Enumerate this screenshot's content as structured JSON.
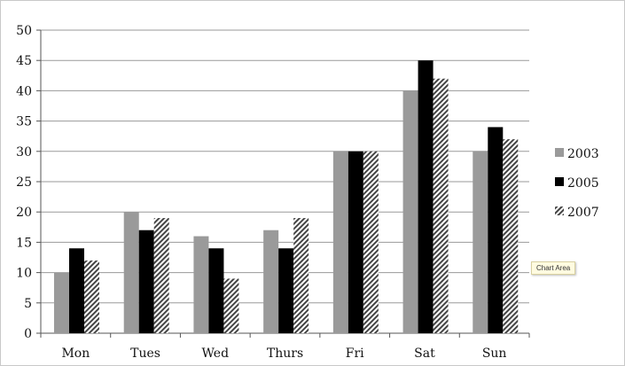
{
  "chart_data": {
    "type": "bar",
    "categories": [
      "Mon",
      "Tues",
      "Wed",
      "Thurs",
      "Fri",
      "Sat",
      "Sun"
    ],
    "series": [
      {
        "name": "2003",
        "values": [
          10,
          20,
          16,
          17,
          30,
          40,
          30
        ],
        "color": "#9a9a9a",
        "pattern": "solid"
      },
      {
        "name": "2005",
        "values": [
          14,
          17,
          14,
          14,
          30,
          45,
          34
        ],
        "color": "#000000",
        "pattern": "solid"
      },
      {
        "name": "2007",
        "values": [
          12,
          19,
          9,
          19,
          30,
          42,
          32
        ],
        "color": "#555555",
        "pattern": "diagonal-stripes"
      }
    ],
    "title": "",
    "xlabel": "",
    "ylabel": "",
    "ylim": [
      0,
      50
    ],
    "yticks": [
      0,
      5,
      10,
      15,
      20,
      25,
      30,
      35,
      40,
      45,
      50
    ],
    "grid": true,
    "legend_position": "right"
  },
  "tooltip": {
    "text": "Chart Area"
  }
}
